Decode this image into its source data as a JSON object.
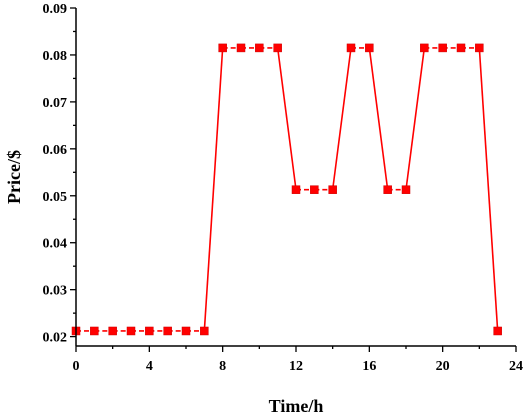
{
  "chart_data": {
    "type": "line",
    "title": "",
    "xlabel": "Time/h",
    "ylabel": "Price/$",
    "xlim": [
      0,
      24
    ],
    "ylim": [
      0.018,
      0.09
    ],
    "xticks": [
      0,
      4,
      8,
      12,
      16,
      20,
      24
    ],
    "yticks": [
      0.02,
      0.03,
      0.04,
      0.05,
      0.06,
      0.07,
      0.08,
      0.09
    ],
    "grid": false,
    "legend": "none",
    "color": "#ff0000",
    "marker": "square",
    "line_style": "dashed between equal values, solid for steps",
    "series": [
      {
        "x": [
          0,
          1,
          2,
          3,
          4,
          5,
          6,
          7,
          8,
          9,
          10,
          11,
          12,
          13,
          14,
          15,
          16,
          17,
          18,
          19,
          20,
          21,
          22,
          23
        ],
        "values": [
          0.0212,
          0.0212,
          0.0212,
          0.0212,
          0.0212,
          0.0212,
          0.0212,
          0.0212,
          0.0815,
          0.0815,
          0.0815,
          0.0815,
          0.0513,
          0.0513,
          0.0513,
          0.0815,
          0.0815,
          0.0513,
          0.0513,
          0.0815,
          0.0815,
          0.0815,
          0.0815,
          0.0212
        ]
      }
    ]
  }
}
